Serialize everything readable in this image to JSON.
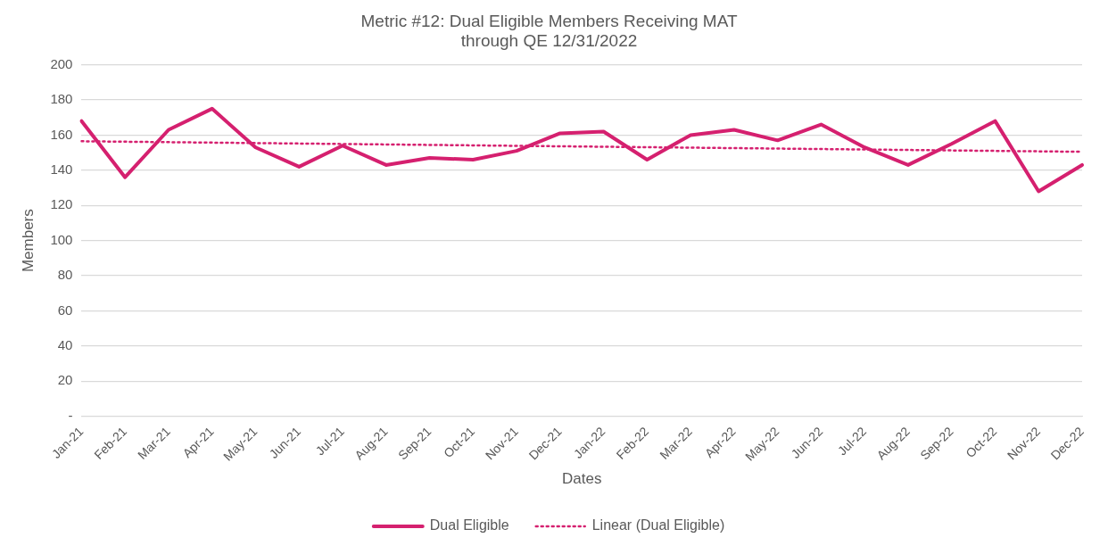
{
  "chart_data": {
    "type": "line",
    "title": "Metric #12: Dual Eligible Members Receiving MAT\nthrough QE 12/31/2022",
    "xlabel": "Dates",
    "ylabel": "Members",
    "categories": [
      "Jan-21",
      "Feb-21",
      "Mar-21",
      "Apr-21",
      "May-21",
      "Jun-21",
      "Jul-21",
      "Aug-21",
      "Sep-21",
      "Oct-21",
      "Nov-21",
      "Dec-21",
      "Jan-22",
      "Feb-22",
      "Mar-22",
      "Apr-22",
      "May-22",
      "Jun-22",
      "Jul-22",
      "Aug-22",
      "Sep-22",
      "Oct-22",
      "Nov-22",
      "Dec-22"
    ],
    "series": [
      {
        "name": "Dual Eligible",
        "color": "#d5206f",
        "line_style": "solid",
        "values": [
          168,
          136,
          163,
          175,
          153,
          142,
          154,
          143,
          147,
          146,
          151,
          161,
          162,
          146,
          160,
          163,
          157,
          166,
          153,
          143,
          155,
          168,
          128,
          143
        ]
      },
      {
        "name": "Linear (Dual Eligible)",
        "type": "line",
        "color": "#d5206f",
        "line_style": "dotted",
        "x": [
          "Jan-21",
          "Dec-22"
        ],
        "values": [
          156.5,
          150.5
        ]
      }
    ],
    "ylim": [
      0,
      200
    ],
    "yticks": [
      {
        "value": 0,
        "label": "-"
      },
      20,
      40,
      60,
      80,
      100,
      120,
      140,
      160,
      180,
      200
    ],
    "grid": "y",
    "legend": "bottom",
    "marker": "none"
  }
}
